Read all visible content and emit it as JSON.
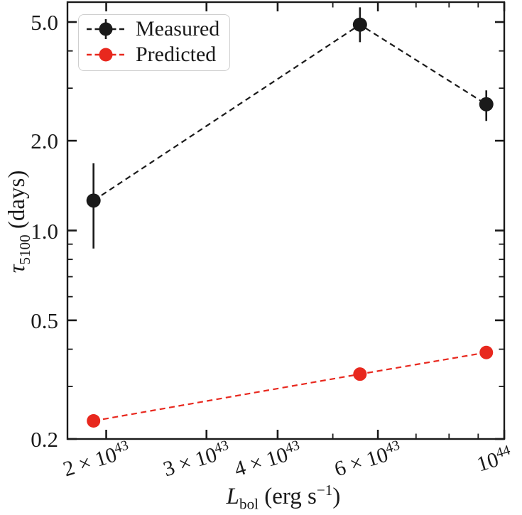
{
  "figure": {
    "background": "#ffffff",
    "text_color": "#1a1a1a"
  },
  "chart_data": {
    "type": "scatter",
    "x_scale": "log",
    "y_scale": "log",
    "xlim": [
      1.71e+43,
      1e+44
    ],
    "ylim": [
      0.2,
      5.83
    ],
    "grid": false,
    "x_values": [
      1.9e+43,
      5.58e+43,
      9.3e+43
    ],
    "series": [
      {
        "name": "Measured",
        "color": "#1a1a1a",
        "linestyle": "dashed",
        "marker": "circle",
        "values": [
          1.26,
          4.9,
          2.65
        ],
        "err_upper": [
          1.68,
          5.6,
          2.95
        ],
        "err_lower": [
          0.87,
          4.28,
          2.33
        ]
      },
      {
        "name": "Predicted",
        "color": "#e8281e",
        "linestyle": "dashed",
        "marker": "circle",
        "values": [
          0.23,
          0.33,
          0.39
        ]
      }
    ],
    "xlabel": {
      "symbol": "L",
      "symbol_sub": "bol",
      "unit_prefix": " (erg s",
      "unit_exp": "−1",
      "unit_suffix": ")"
    },
    "ylabel": {
      "symbol": "τ",
      "symbol_sub": "5100",
      "unit": " (days)"
    },
    "x_ticks_major": [
      {
        "v": 2e+43,
        "coeff": "2 × 10",
        "exp": "43"
      },
      {
        "v": 3e+43,
        "coeff": "3 × 10",
        "exp": "43"
      },
      {
        "v": 4e+43,
        "coeff": "4 × 10",
        "exp": "43"
      },
      {
        "v": 6e+43,
        "coeff": "6 × 10",
        "exp": "43"
      },
      {
        "v": 1e+44,
        "coeff": "10",
        "exp": "44"
      }
    ],
    "x_ticks_minor": [
      5e+43,
      7e+43,
      8e+43,
      9e+43
    ],
    "y_ticks_major": [
      {
        "v": 5.0,
        "label": "5.0"
      },
      {
        "v": 2.0,
        "label": "2.0"
      },
      {
        "v": 1.0,
        "label": "1.0"
      },
      {
        "v": 0.5,
        "label": "0.5"
      },
      {
        "v": 0.2,
        "label": "0.2"
      }
    ],
    "y_ticks_minor": [
      4.0,
      3.0,
      0.9,
      0.8,
      0.7,
      0.6,
      0.4,
      0.3
    ],
    "legend": {
      "position": "upper left"
    }
  }
}
